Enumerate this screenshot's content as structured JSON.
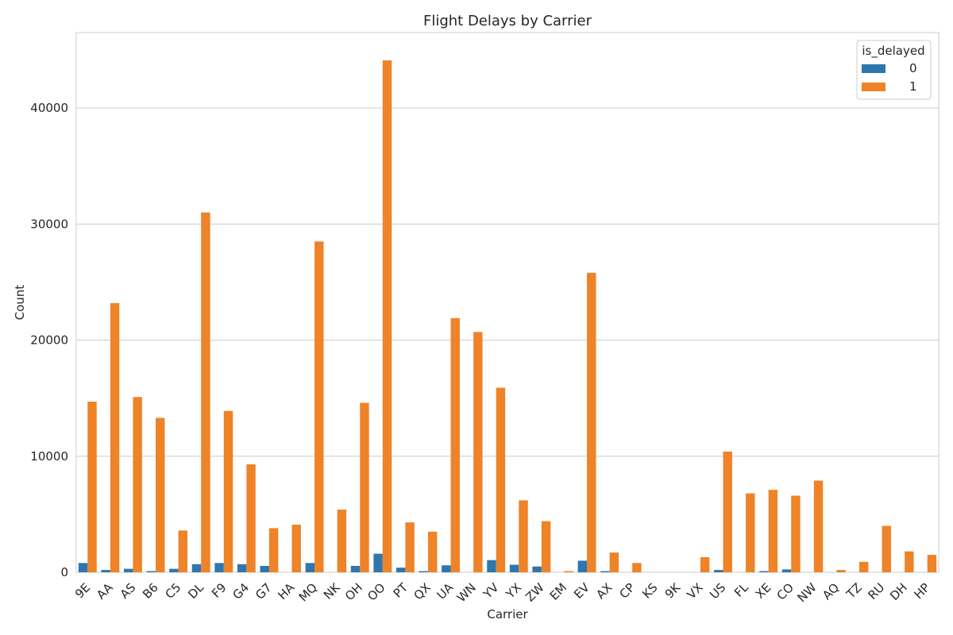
{
  "chart_data": {
    "type": "bar",
    "title": "Flight Delays by Carrier",
    "xlabel": "Carrier",
    "ylabel": "Count",
    "ylim": [
      0,
      46500
    ],
    "yticks": [
      0,
      10000,
      20000,
      30000,
      40000
    ],
    "grid": true,
    "legend": {
      "title": "is_delayed",
      "placement": "top-right"
    },
    "categories": [
      "9E",
      "AA",
      "AS",
      "B6",
      "C5",
      "DL",
      "F9",
      "G4",
      "G7",
      "HA",
      "MQ",
      "NK",
      "OH",
      "OO",
      "PT",
      "QX",
      "UA",
      "WN",
      "YV",
      "YX",
      "ZW",
      "EM",
      "EV",
      "AX",
      "CP",
      "KS",
      "9K",
      "VX",
      "US",
      "FL",
      "XE",
      "CO",
      "NW",
      "AQ",
      "TZ",
      "RU",
      "DH",
      "HP"
    ],
    "series": [
      {
        "name": "0",
        "color": "#2f76ae",
        "values": [
          800,
          200,
          300,
          100,
          300,
          700,
          800,
          700,
          550,
          0,
          800,
          0,
          550,
          1600,
          400,
          100,
          600,
          0,
          1050,
          650,
          500,
          0,
          1000,
          100,
          0,
          0,
          0,
          0,
          200,
          0,
          100,
          250,
          0,
          0,
          0,
          0,
          0,
          0
        ]
      },
      {
        "name": "1",
        "color": "#ee8327",
        "values": [
          14700,
          23200,
          15100,
          13300,
          3600,
          31000,
          13900,
          9300,
          3800,
          4100,
          28500,
          5400,
          14600,
          44100,
          4300,
          3500,
          21900,
          20700,
          15900,
          6200,
          4400,
          100,
          25800,
          1700,
          800,
          0,
          0,
          1300,
          10400,
          6800,
          7100,
          6600,
          7900,
          200,
          900,
          4000,
          1800,
          1500
        ]
      }
    ]
  }
}
